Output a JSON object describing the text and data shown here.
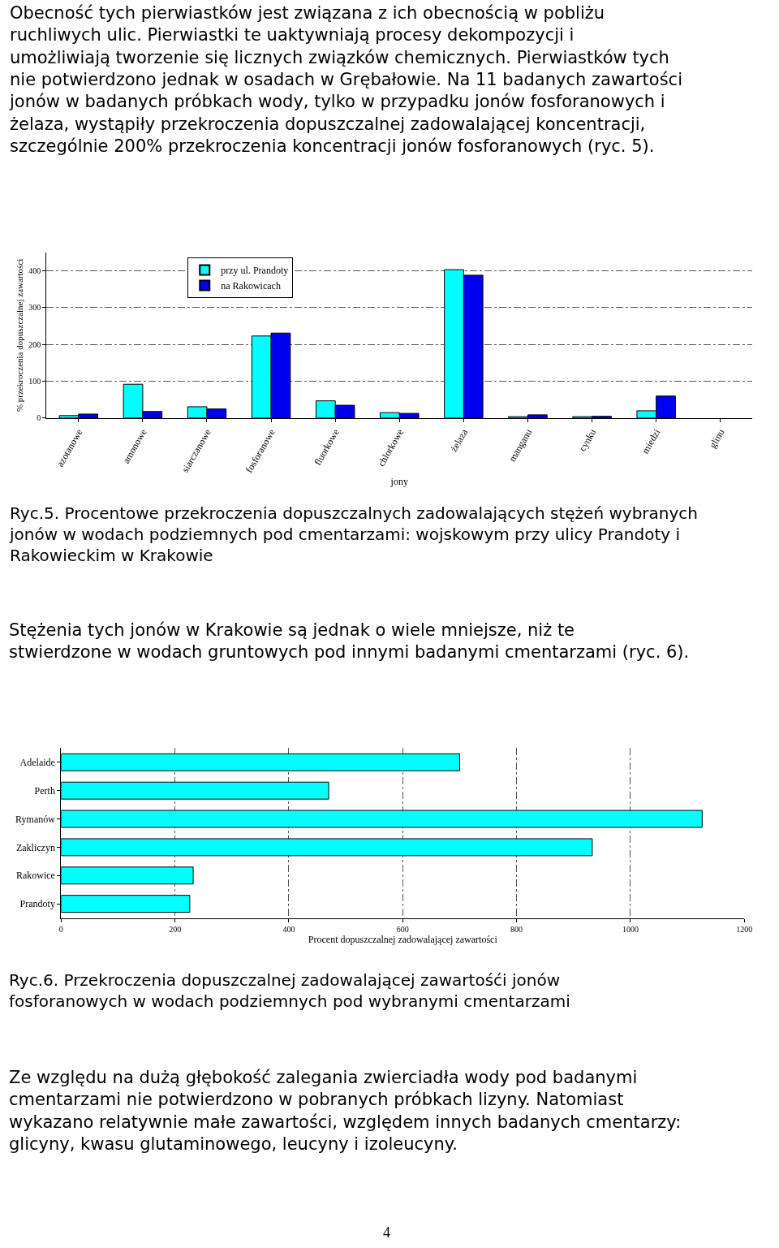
{
  "chart_data": [
    {
      "type": "bar",
      "ylabel": "% przekroczenia dopuszczalnej zawartości",
      "xlabel": "jony",
      "categories": [
        "azotanowe",
        "amonowe",
        "siarczanowe",
        "fosforanowe",
        "fluorkowe",
        "chlorkowe",
        "żelaza",
        "manganu",
        "cynku",
        "miedzi",
        "glinu"
      ],
      "series": [
        {
          "name": "przy ul. Prandoty",
          "color": "#00ffff",
          "values": [
            7,
            92,
            31,
            223,
            47,
            15,
            403,
            4,
            4,
            20,
            null
          ]
        },
        {
          "name": "na Rakowicach",
          "color": "#0000ee",
          "values": [
            11,
            18,
            25,
            231,
            35,
            13,
            388,
            9,
            5,
            60,
            null
          ]
        }
      ],
      "ylim": [
        0,
        450
      ],
      "yticks": [
        0,
        100,
        200,
        300,
        400
      ],
      "grid": "y",
      "legend": "top left",
      "annotations": [
        "Obecność tych pierwiastków jest związana z ich obecnością w pobliżu ruchliwych ulic. Pierwiastki te uaktywniają procesy dekompozycji i umożliwiają tworzenie się licznych związków chemicznych. Pierwiastków tych nie potwierdzono jednak w osadach w Grębałowie. Na 11 badanych zawartości jonów w badanych próbkach wody, tylko w przypadku jonów fosforanowych i żelaza, wystąpiły przekroczenia dopuszczalnej zadowalającej koncentracji, szczególnie 200% przekroczenia koncentracji jonów fosforanowych (ryc. 5).",
        "Ryc.5. Procentowe przekroczenia dopuszczalnych zadowalających stężeń wybranych jonów w wodach podziemnych pod cmentarzami: wojskowym przy ulicy Prandoty i Rakowieckim w Krakowie"
      ]
    },
    {
      "type": "bar",
      "orientation": "horizontal",
      "xlabel": "Procent dopuszczalnej zadowalającej zawartości",
      "categories": [
        "Adelaide",
        "Perth",
        "Rymanów",
        "Zakliczyn",
        "Rakowice",
        "Prandoty"
      ],
      "values": [
        700,
        470,
        1126,
        933,
        232,
        226
      ],
      "color": "#00ffff",
      "xlim": [
        0,
        1200
      ],
      "xticks": [
        0,
        200,
        400,
        600,
        800,
        1000,
        1200
      ],
      "grid": "x",
      "annotations": [
        "Stężenia tych jonów w Krakowie są jednak o wiele mniejsze, niż te stwierdzone w wodach gruntowych pod innymi badanymi cmentarzami (ryc. 6).",
        "Ryc.6. Przekroczenia dopuszczalnej zadowalającej zawartośći jonów fosforanowych w wodach podziemnych pod wybranymi cmentarzami",
        "Ze względu na dużą głębokość zalegania zwierciadła wody pod badanymi cmentarzami nie potwierdzono w pobranych próbkach lizyny. Natomiast wykazano relatywnie małe zawartości, względem innych badanych cmentarzy: glicyny, kwasu glutaminowego, leucyny i izoleucyny.",
        "4"
      ]
    }
  ]
}
